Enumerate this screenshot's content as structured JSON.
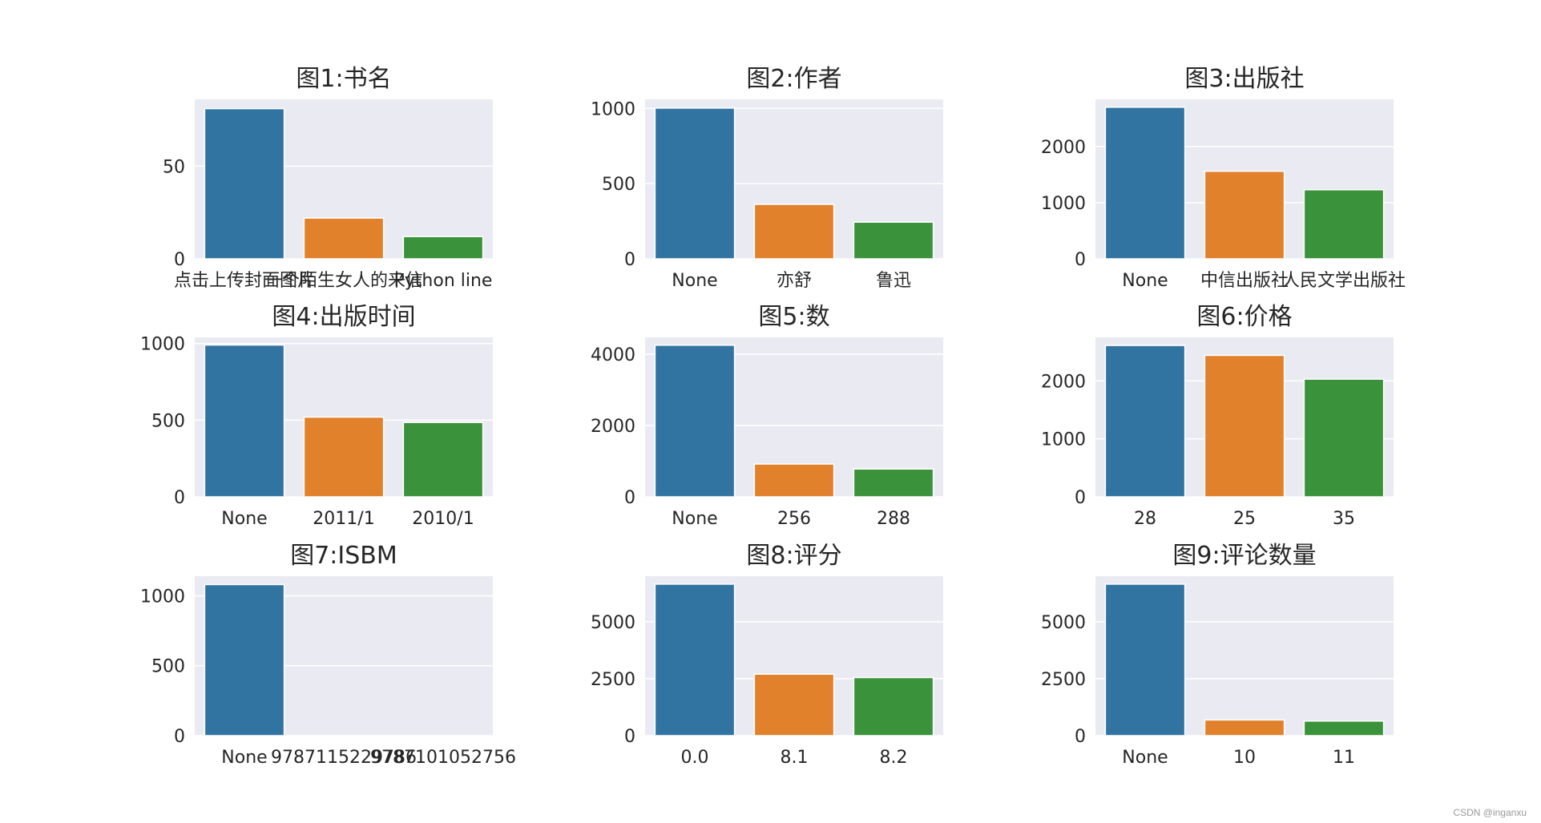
{
  "watermark": "CSDN @inganxu",
  "colors": {
    "plot_bg": "#eaeaf2",
    "grid": "#ffffff",
    "bar_colors": [
      "#3274a1",
      "#e1812c",
      "#3a923a"
    ],
    "text": "#262626"
  },
  "chart_data": [
    {
      "type": "bar",
      "title": "图1:书名",
      "categories": [
        "点击上传封面图片",
        "一个陌生女人的来信",
        "Python line"
      ],
      "values": [
        81,
        22,
        12
      ],
      "ylim": [
        0,
        86
      ],
      "yticks": [
        0,
        50
      ],
      "grid": true
    },
    {
      "type": "bar",
      "title": "图2:作者",
      "categories": [
        "None",
        "亦舒",
        "鲁迅"
      ],
      "values": [
        1002,
        362,
        244
      ],
      "ylim": [
        0,
        1060
      ],
      "yticks": [
        0,
        500,
        1000
      ],
      "grid": true
    },
    {
      "type": "bar",
      "title": "图3:出版社",
      "categories": [
        "None",
        "中信出版社",
        "人民文学出版社"
      ],
      "values": [
        2700,
        1560,
        1230
      ],
      "ylim": [
        0,
        2840
      ],
      "yticks": [
        0,
        1000,
        2000
      ],
      "grid": true
    },
    {
      "type": "bar",
      "title": "图4:出版时间",
      "categories": [
        "None",
        "2011/1",
        "2010/1"
      ],
      "values": [
        990,
        520,
        485
      ],
      "ylim": [
        0,
        1040
      ],
      "yticks": [
        0,
        500,
        1000
      ],
      "grid": true
    },
    {
      "type": "bar",
      "title": "图5:数",
      "categories": [
        "None",
        "256",
        "288"
      ],
      "values": [
        4250,
        920,
        780
      ],
      "ylim": [
        0,
        4470
      ],
      "yticks": [
        0,
        2000,
        4000
      ],
      "grid": true
    },
    {
      "type": "bar",
      "title": "图6:价格",
      "categories": [
        "28",
        "25",
        "35"
      ],
      "values": [
        2610,
        2440,
        2030
      ],
      "ylim": [
        0,
        2750
      ],
      "yticks": [
        0,
        1000,
        2000
      ],
      "grid": true
    },
    {
      "type": "bar",
      "title": "图7:ISBM",
      "categories": [
        "None",
        "9787115229786",
        "9787101052756"
      ],
      "values": [
        1080,
        0,
        0
      ],
      "ylim": [
        0,
        1140
      ],
      "yticks": [
        0,
        500,
        1000
      ],
      "grid": true
    },
    {
      "type": "bar",
      "title": "图8:评分",
      "categories": [
        "0.0",
        "8.1",
        "8.2"
      ],
      "values": [
        6650,
        2700,
        2550
      ],
      "ylim": [
        0,
        7000
      ],
      "yticks": [
        0,
        2500,
        5000
      ],
      "grid": true
    },
    {
      "type": "bar",
      "title": "图9:评论数量",
      "categories": [
        "None",
        "10",
        "11"
      ],
      "values": [
        6650,
        690,
        640
      ],
      "ylim": [
        0,
        7000
      ],
      "yticks": [
        0,
        2500,
        5000
      ],
      "grid": true
    }
  ]
}
